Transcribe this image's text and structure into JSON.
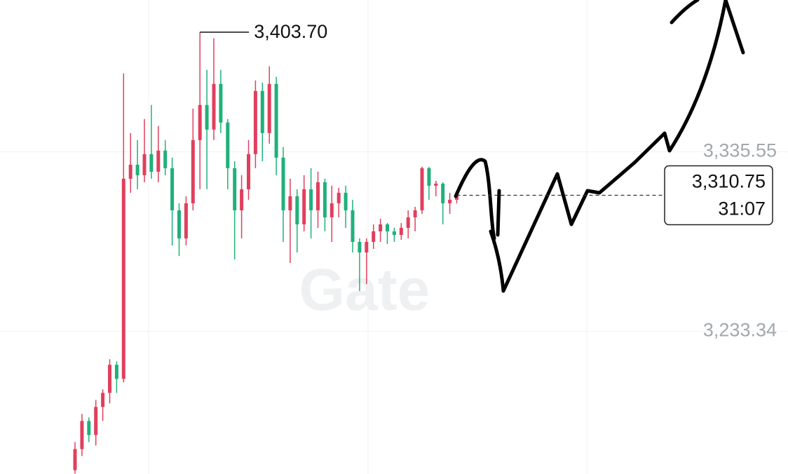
{
  "chart_data": {
    "type": "candlestick",
    "watermark": "Gate",
    "up_color": "#e0405e",
    "down_color": "#1fb07c",
    "open": [
      3154.2,
      3166.2,
      3182.2,
      3174.2,
      3190.2,
      3198.2,
      3214.2,
      3206.2,
      3320.2,
      3328.2,
      3322.2,
      3334.2,
      3324.2,
      3336.2,
      3326.2,
      3302.2,
      3286.2,
      3306.2,
      3342.2,
      3362.2,
      3348.2,
      3374.2,
      3352.2,
      3326.2,
      3302.2,
      3314.2,
      3334.2,
      3370.2,
      3346.2,
      3374.2,
      3332.2,
      3302.2,
      3310.2,
      3294.2,
      3314.2,
      3302.2,
      3318.2,
      3298.2,
      3306.2,
      3312.2,
      3302.2,
      3284.2,
      3278.2,
      3284.2,
      3290.2,
      3294.2,
      3290.2,
      3288.2,
      3292.2,
      3298.2,
      3302.2,
      3326.2,
      3316.2,
      3317.4,
      3306.2,
      3308.2
    ],
    "high": [
      3170.2,
      3186.2,
      3184.2,
      3194.2,
      3200.2,
      3217.4,
      3216.2,
      3380.2,
      3346.2,
      3342.2,
      3354.2,
      3362.2,
      3350.2,
      3342.2,
      3332.2,
      3306.2,
      3310.2,
      3360.2,
      3403.7,
      3382.2,
      3400.2,
      3382.2,
      3354.2,
      3330.2,
      3322.2,
      3342.2,
      3376.2,
      3375.0,
      3384.2,
      3378.2,
      3338.2,
      3320.2,
      3314.2,
      3322.2,
      3326.2,
      3324.2,
      3320.2,
      3316.2,
      3315.0,
      3316.2,
      3308.2,
      3286.2,
      3286.2,
      3294.2,
      3297.4,
      3295.0,
      3292.2,
      3295.0,
      3302.2,
      3304.2,
      3327.0,
      3327.0,
      3319.0,
      3318.2,
      3312.2,
      3312.2
    ],
    "low": [
      3152.2,
      3162.2,
      3170.2,
      3168.2,
      3182.2,
      3192.2,
      3198.2,
      3204.2,
      3312.2,
      3314.2,
      3318.2,
      3320.2,
      3318.2,
      3322.2,
      3282.2,
      3276.2,
      3282.2,
      3302.2,
      3314.2,
      3314.2,
      3342.2,
      3346.2,
      3314.2,
      3274.2,
      3286.2,
      3308.2,
      3326.2,
      3330.2,
      3340.2,
      3322.2,
      3284.2,
      3272.2,
      3278.2,
      3290.2,
      3286.2,
      3292.2,
      3290.2,
      3284.2,
      3298.2,
      3292.2,
      3278.2,
      3256.2,
      3260.2,
      3280.2,
      3284.2,
      3283.0,
      3284.2,
      3285.4,
      3286.2,
      3290.2,
      3300.2,
      3308.2,
      3310.2,
      3294.2,
      3300.2,
      3306.2
    ],
    "close": [
      3166.2,
      3182.2,
      3174.2,
      3190.2,
      3198.2,
      3214.2,
      3206.2,
      3320.2,
      3328.2,
      3322.2,
      3334.2,
      3324.2,
      3336.2,
      3326.2,
      3302.2,
      3286.2,
      3306.2,
      3342.2,
      3362.2,
      3348.2,
      3374.2,
      3352.2,
      3326.2,
      3302.2,
      3314.2,
      3334.2,
      3370.2,
      3346.2,
      3374.2,
      3332.2,
      3302.2,
      3310.2,
      3294.2,
      3314.2,
      3302.2,
      3318.2,
      3298.2,
      3306.2,
      3312.2,
      3302.2,
      3284.2,
      3278.2,
      3284.2,
      3290.2,
      3294.2,
      3290.2,
      3288.2,
      3292.2,
      3298.2,
      3302.2,
      3326.2,
      3316.2,
      3317.4,
      3306.2,
      3308.2,
      3310.75
    ],
    "ylim": [
      3152,
      3422
    ],
    "yticks": [
      {
        "value": 3233.34,
        "label": "3,233.34"
      },
      {
        "value": 3335.55,
        "label": "3,335.55"
      }
    ],
    "grid": true,
    "high_marker": {
      "value": 3403.7,
      "label": "3,403.70"
    },
    "last_price": {
      "value": 3310.75,
      "label": "3,310.75",
      "countdown": "31:07"
    }
  }
}
